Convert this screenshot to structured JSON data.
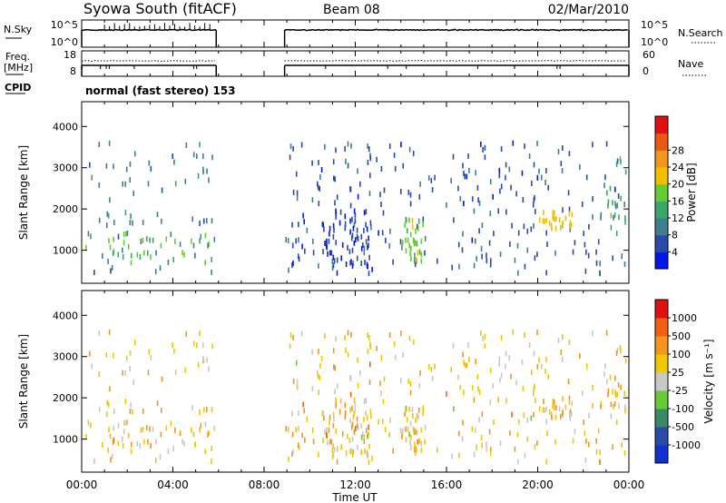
{
  "header": {
    "station": "Syowa South (fitACF)",
    "beam": "Beam 08",
    "date": "02/Mar/2010"
  },
  "side_labels": {
    "nsky": "N.Sky",
    "freq_line1": "Freq.",
    "freq_line2": "[MHz]",
    "cpid": "CPID",
    "nsearch": "N.Search",
    "nave": "Nave",
    "cpid_text": "normal (fast stereo) 153"
  },
  "noise_panel": {
    "ticks_left": [
      "10^5",
      "10^0"
    ],
    "ticks_right": [
      "10^5",
      "10^0"
    ]
  },
  "freq_panel": {
    "ticks_left": [
      "18",
      "8"
    ],
    "ticks_right": [
      "60",
      "0"
    ]
  },
  "colors": {
    "power": [
      "#0018e8",
      "#2a4aa8",
      "#3f7f8f",
      "#3aa66a",
      "#66cc33",
      "#f0c000",
      "#f4961e",
      "#e85a10",
      "#e01010"
    ],
    "velocity": [
      "#e01010",
      "#f06010",
      "#f4961e",
      "#f0c800",
      "#c8c8c8",
      "#66cc33",
      "#3a8a6a",
      "#2a4aa8",
      "#1030d0"
    ]
  },
  "chart_data": [
    {
      "type": "heatmap",
      "quantity": "Power",
      "xlabel": "",
      "ylabel": "Slant Range [km]",
      "x_range": [
        "00:00",
        "24:00"
      ],
      "ylim": [
        200,
        4600
      ],
      "y_ticks": [
        1000,
        2000,
        3000,
        4000
      ],
      "colorbar_label": "Power [dB]",
      "colorbar_ticks": [
        "4",
        "8",
        "12",
        "16",
        "20",
        "24",
        "28"
      ],
      "colorbar_range": [
        0,
        32
      ],
      "data_gap": [
        "06:00",
        "09:00"
      ]
    },
    {
      "type": "heatmap",
      "quantity": "Velocity",
      "xlabel": "Time UT",
      "ylabel": "Slant Range [km]",
      "x_range": [
        "00:00",
        "24:00"
      ],
      "ylim": [
        200,
        4600
      ],
      "y_ticks": [
        1000,
        2000,
        3000,
        4000
      ],
      "x_ticks": [
        "00:00",
        "04:00",
        "08:00",
        "12:00",
        "16:00",
        "20:00",
        "00:00"
      ],
      "colorbar_label": "Velocity [m s⁻¹]",
      "colorbar_ticks": [
        "1000",
        "500",
        "100",
        "25",
        "-25",
        "-100",
        "-500",
        "-1000"
      ],
      "data_gap": [
        "06:00",
        "09:00"
      ]
    }
  ]
}
